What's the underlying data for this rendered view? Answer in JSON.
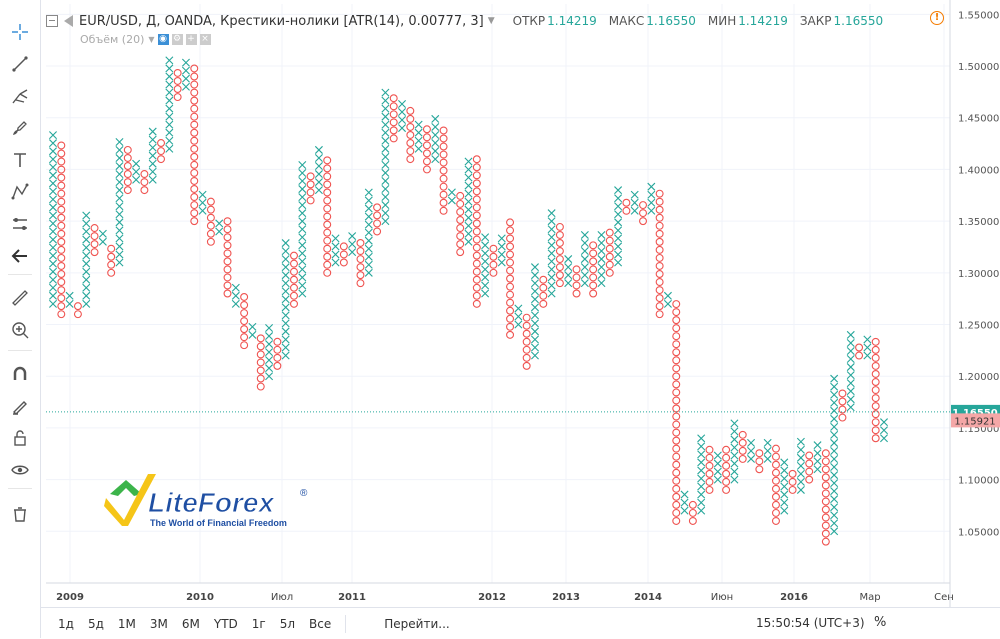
{
  "header": {
    "title": "EUR/USD, Д, OANDA, Крестики-нолики [ATR(14), 0.00777, 3]",
    "open_label": "ОТКР",
    "open": "1.14219",
    "high_label": "МАКС",
    "high": "1.16550",
    "low_label": "МИН",
    "low": "1.14219",
    "close_label": "ЗАКР",
    "close": "1.16550",
    "volume_label": "Объём (20)"
  },
  "bottom": {
    "timeframes": [
      "1д",
      "5д",
      "1М",
      "3М",
      "6М",
      "YTD",
      "1г",
      "5л",
      "Все"
    ],
    "goto_label": "Перейти...",
    "clock": "15:50:54 (UTC+3)",
    "percent_label": "%"
  },
  "toolbar": {
    "icons": [
      "crosshair-icon",
      "trend-line-icon",
      "pitchfork-icon",
      "brush-icon",
      "text-icon",
      "pattern-icon",
      "prediction-icon",
      "back-arrow-icon",
      "ruler-icon",
      "zoom-icon",
      "magnet-icon",
      "lock-drawing-icon",
      "lock-icon",
      "eye-icon",
      "trash-icon"
    ]
  },
  "logo": {
    "brand": "LiteForex",
    "registered": "®",
    "tagline": "The World of Financial Freedom"
  },
  "colors": {
    "x_color": "#26a69a",
    "o_color": "#ef5350",
    "grid": "#f0f3fa",
    "current_line": "#26a69a",
    "last_price_badge": "#26a69a",
    "prev_price_badge": "#f4a7a7",
    "logo_green": "#3cb44a",
    "logo_yellow": "#f5c518",
    "logo_blue": "#1f4fa3"
  },
  "chart_data": {
    "type": "point-and-figure",
    "box_size": 0.00777,
    "reversal": 3,
    "y_axis": {
      "ticks": [
        "1.05000",
        "1.10000",
        "1.15000",
        "1.20000",
        "1.25000",
        "1.30000",
        "1.35000",
        "1.40000",
        "1.45000",
        "1.50000",
        "1.55000"
      ],
      "ylim": [
        1.0,
        1.56
      ]
    },
    "x_axis": {
      "ticks": [
        "2009",
        "2010",
        "Июл",
        "2011",
        "2012",
        "2013",
        "2014",
        "Июн",
        "2016",
        "Мар",
        "Сен"
      ],
      "bold_ticks": [
        "2009",
        "2010",
        "2011",
        "2012",
        "2013",
        "2014",
        "2016"
      ]
    },
    "current_price": "1.16550",
    "previous_price": "1.15921",
    "columns": [
      {
        "type": "X",
        "low": 1.27,
        "high": 1.44
      },
      {
        "type": "O",
        "low": 1.26,
        "high": 1.43
      },
      {
        "type": "X",
        "low": 1.27,
        "high": 1.28
      },
      {
        "type": "O",
        "low": 1.26,
        "high": 1.27
      },
      {
        "type": "X",
        "low": 1.27,
        "high": 1.36
      },
      {
        "type": "O",
        "low": 1.32,
        "high": 1.35
      },
      {
        "type": "X",
        "low": 1.33,
        "high": 1.34
      },
      {
        "type": "O",
        "low": 1.3,
        "high": 1.33
      },
      {
        "type": "X",
        "low": 1.31,
        "high": 1.43
      },
      {
        "type": "O",
        "low": 1.38,
        "high": 1.42
      },
      {
        "type": "X",
        "low": 1.39,
        "high": 1.41
      },
      {
        "type": "O",
        "low": 1.38,
        "high": 1.4
      },
      {
        "type": "X",
        "low": 1.39,
        "high": 1.44
      },
      {
        "type": "O",
        "low": 1.41,
        "high": 1.43
      },
      {
        "type": "X",
        "low": 1.42,
        "high": 1.51
      },
      {
        "type": "O",
        "low": 1.47,
        "high": 1.5
      },
      {
        "type": "X",
        "low": 1.48,
        "high": 1.51
      },
      {
        "type": "O",
        "low": 1.35,
        "high": 1.5
      },
      {
        "type": "X",
        "low": 1.36,
        "high": 1.38
      },
      {
        "type": "O",
        "low": 1.33,
        "high": 1.37
      },
      {
        "type": "X",
        "low": 1.34,
        "high": 1.35
      },
      {
        "type": "O",
        "low": 1.28,
        "high": 1.35
      },
      {
        "type": "X",
        "low": 1.27,
        "high": 1.29
      },
      {
        "type": "O",
        "low": 1.23,
        "high": 1.28
      },
      {
        "type": "X",
        "low": 1.24,
        "high": 1.25
      },
      {
        "type": "O",
        "low": 1.19,
        "high": 1.24
      },
      {
        "type": "X",
        "low": 1.2,
        "high": 1.25
      },
      {
        "type": "O",
        "low": 1.21,
        "high": 1.24
      },
      {
        "type": "X",
        "low": 1.22,
        "high": 1.33
      },
      {
        "type": "O",
        "low": 1.27,
        "high": 1.32
      },
      {
        "type": "X",
        "low": 1.28,
        "high": 1.41
      },
      {
        "type": "O",
        "low": 1.37,
        "high": 1.4
      },
      {
        "type": "X",
        "low": 1.38,
        "high": 1.42
      },
      {
        "type": "O",
        "low": 1.3,
        "high": 1.41
      },
      {
        "type": "X",
        "low": 1.31,
        "high": 1.34
      },
      {
        "type": "O",
        "low": 1.31,
        "high": 1.33
      },
      {
        "type": "X",
        "low": 1.32,
        "high": 1.34
      },
      {
        "type": "O",
        "low": 1.29,
        "high": 1.33
      },
      {
        "type": "X",
        "low": 1.3,
        "high": 1.38
      },
      {
        "type": "O",
        "low": 1.34,
        "high": 1.37
      },
      {
        "type": "X",
        "low": 1.35,
        "high": 1.48
      },
      {
        "type": "O",
        "low": 1.43,
        "high": 1.47
      },
      {
        "type": "X",
        "low": 1.44,
        "high": 1.47
      },
      {
        "type": "O",
        "low": 1.41,
        "high": 1.46
      },
      {
        "type": "X",
        "low": 1.42,
        "high": 1.45
      },
      {
        "type": "O",
        "low": 1.4,
        "high": 1.44
      },
      {
        "type": "X",
        "low": 1.41,
        "high": 1.45
      },
      {
        "type": "O",
        "low": 1.36,
        "high": 1.44
      },
      {
        "type": "X",
        "low": 1.37,
        "high": 1.38
      },
      {
        "type": "O",
        "low": 1.32,
        "high": 1.38
      },
      {
        "type": "X",
        "low": 1.33,
        "high": 1.41
      },
      {
        "type": "O",
        "low": 1.27,
        "high": 1.41
      },
      {
        "type": "X",
        "low": 1.28,
        "high": 1.34
      },
      {
        "type": "O",
        "low": 1.3,
        "high": 1.33
      },
      {
        "type": "X",
        "low": 1.31,
        "high": 1.34
      },
      {
        "type": "O",
        "low": 1.24,
        "high": 1.35
      },
      {
        "type": "X",
        "low": 1.25,
        "high": 1.27
      },
      {
        "type": "O",
        "low": 1.21,
        "high": 1.26
      },
      {
        "type": "X",
        "low": 1.22,
        "high": 1.31
      },
      {
        "type": "O",
        "low": 1.27,
        "high": 1.3
      },
      {
        "type": "X",
        "low": 1.28,
        "high": 1.36
      },
      {
        "type": "O",
        "low": 1.29,
        "high": 1.35
      },
      {
        "type": "X",
        "low": 1.29,
        "high": 1.32
      },
      {
        "type": "O",
        "low": 1.28,
        "high": 1.31
      },
      {
        "type": "X",
        "low": 1.29,
        "high": 1.34
      },
      {
        "type": "O",
        "low": 1.28,
        "high": 1.33
      },
      {
        "type": "X",
        "low": 1.29,
        "high": 1.34
      },
      {
        "type": "O",
        "low": 1.3,
        "high": 1.34
      },
      {
        "type": "X",
        "low": 1.31,
        "high": 1.38
      },
      {
        "type": "O",
        "low": 1.36,
        "high": 1.37
      },
      {
        "type": "X",
        "low": 1.36,
        "high": 1.38
      },
      {
        "type": "O",
        "low": 1.35,
        "high": 1.37
      },
      {
        "type": "X",
        "low": 1.36,
        "high": 1.39
      },
      {
        "type": "O",
        "low": 1.26,
        "high": 1.38
      },
      {
        "type": "X",
        "low": 1.27,
        "high": 1.28
      },
      {
        "type": "O",
        "low": 1.06,
        "high": 1.27
      },
      {
        "type": "X",
        "low": 1.07,
        "high": 1.09
      },
      {
        "type": "O",
        "low": 1.06,
        "high": 1.08
      },
      {
        "type": "X",
        "low": 1.07,
        "high": 1.14
      },
      {
        "type": "O",
        "low": 1.09,
        "high": 1.13
      },
      {
        "type": "X",
        "low": 1.1,
        "high": 1.13
      },
      {
        "type": "O",
        "low": 1.09,
        "high": 1.13
      },
      {
        "type": "X",
        "low": 1.1,
        "high": 1.16
      },
      {
        "type": "O",
        "low": 1.12,
        "high": 1.15
      },
      {
        "type": "X",
        "low": 1.12,
        "high": 1.14
      },
      {
        "type": "O",
        "low": 1.11,
        "high": 1.13
      },
      {
        "type": "X",
        "low": 1.12,
        "high": 1.14
      },
      {
        "type": "O",
        "low": 1.06,
        "high": 1.13
      },
      {
        "type": "X",
        "low": 1.07,
        "high": 1.12
      },
      {
        "type": "O",
        "low": 1.09,
        "high": 1.11
      },
      {
        "type": "X",
        "low": 1.09,
        "high": 1.14
      },
      {
        "type": "O",
        "low": 1.1,
        "high": 1.13
      },
      {
        "type": "X",
        "low": 1.11,
        "high": 1.14
      },
      {
        "type": "O",
        "low": 1.04,
        "high": 1.13
      },
      {
        "type": "X",
        "low": 1.05,
        "high": 1.2
      },
      {
        "type": "O",
        "low": 1.16,
        "high": 1.19
      },
      {
        "type": "X",
        "low": 1.17,
        "high": 1.24
      },
      {
        "type": "O",
        "low": 1.22,
        "high": 1.23
      },
      {
        "type": "X",
        "low": 1.22,
        "high": 1.24
      },
      {
        "type": "O",
        "low": 1.14,
        "high": 1.24
      },
      {
        "type": "X",
        "low": 1.14,
        "high": 1.16
      }
    ]
  }
}
